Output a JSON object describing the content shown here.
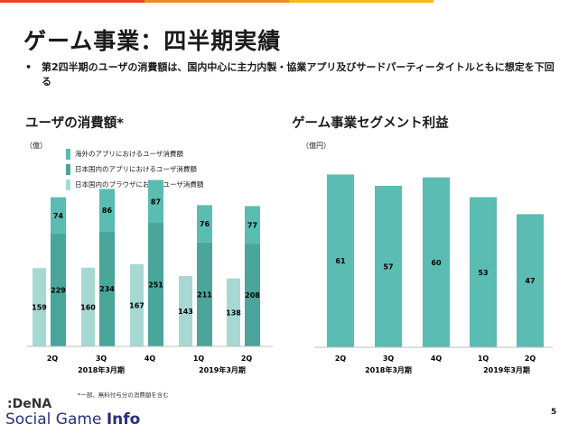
{
  "page": {
    "title": "ゲーム事業：四半期実績",
    "bullet_mark": "•",
    "bullet": "第2四半期のユーザの消費額は、国内中心に主力内製・協業アプリ及びサードパーティータイトルともに想定を下回る",
    "footnote": "*一部、無料付与分の消費額を含む",
    "page_number": "5",
    "logo_top": ":DeNA",
    "logo_social": "Social Game ",
    "logo_info": "Info",
    "top_bar_colors": [
      "#e8472c",
      "#f08a24",
      "#f5b91e",
      "#ffffff"
    ]
  },
  "colors": {
    "browser": "#a6d9d4",
    "domestic_app": "#4aa59a",
    "overseas_app": "#5bbcb3",
    "segment_bar": "#5bbcb3",
    "axis": "#bfbfbf"
  },
  "chart_data": [
    {
      "type": "bar",
      "title": "ユーザの消費額*",
      "unit_label": "（億）",
      "categories": [
        "2Q",
        "3Q",
        "4Q",
        "1Q",
        "2Q"
      ],
      "period_labels": [
        {
          "label": "2018年3月期",
          "categories": [
            "2Q",
            "3Q",
            "4Q"
          ]
        },
        {
          "label": "2019年3月期",
          "categories": [
            "1Q",
            "2Q"
          ]
        }
      ],
      "legend_position": "top-left",
      "series": [
        {
          "name": "日本国内のブラウザにおけるユーザ消費額",
          "values": [
            159,
            160,
            167,
            143,
            138
          ],
          "color": "#a6d9d4",
          "stack": "browser"
        },
        {
          "name": "日本国内のアプリにおけるユーザ消費額",
          "values": [
            229,
            234,
            251,
            211,
            208
          ],
          "color": "#4aa59a",
          "stack": "app"
        },
        {
          "name": "海外のアプリにおけるユーザ消費額",
          "values": [
            74,
            86,
            87,
            76,
            77
          ],
          "color": "#5bbcb3",
          "stack": "app"
        }
      ],
      "legend_order": [
        "海外のアプリにおけるユーザ消費額",
        "日本国内のアプリにおけるユーザ消費額",
        "日本国内のブラウザにおけるユーザ消費額"
      ],
      "grid": false
    },
    {
      "type": "bar",
      "title": "ゲーム事業セグメント利益",
      "unit_label": "（億円）",
      "categories": [
        "2Q",
        "3Q",
        "4Q",
        "1Q",
        "2Q"
      ],
      "period_labels": [
        {
          "label": "2018年3月期",
          "categories": [
            "2Q",
            "3Q",
            "4Q"
          ]
        },
        {
          "label": "2019年3月期",
          "categories": [
            "1Q",
            "2Q"
          ]
        }
      ],
      "values": [
        61,
        57,
        60,
        53,
        47
      ],
      "color": "#5bbcb3",
      "grid": false
    }
  ]
}
